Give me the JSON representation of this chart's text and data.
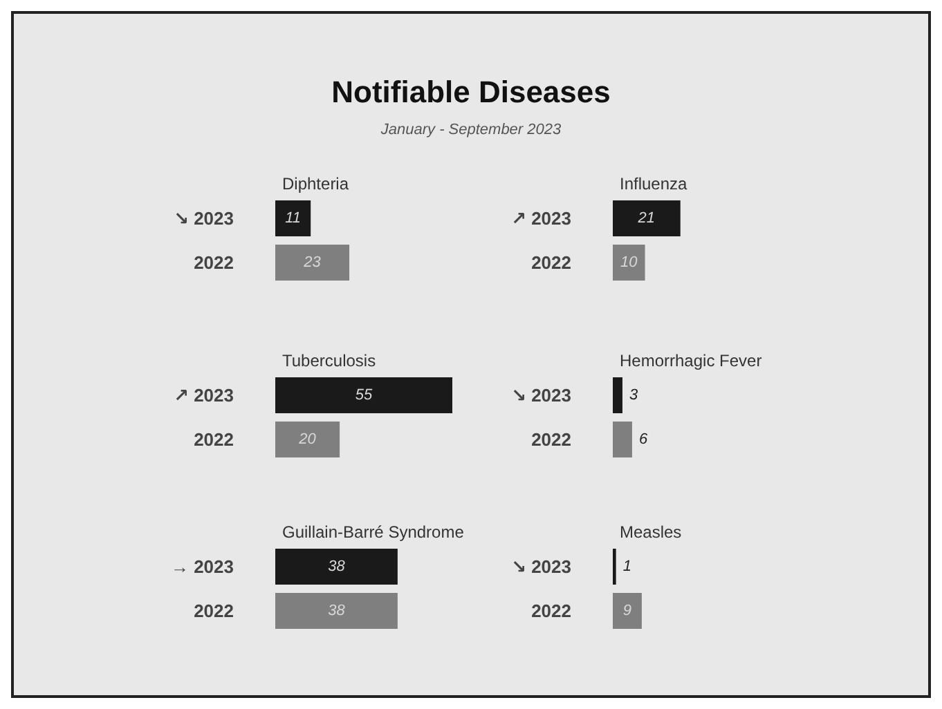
{
  "chart_data": [
    {
      "type": "other",
      "title": "Notifiable Diseases",
      "subtitle": "January - September 2023"
    },
    {
      "type": "bar",
      "orientation": "horizontal",
      "title": "Diphteria",
      "categories": [
        "↘ 2023",
        "2022"
      ],
      "values": [
        11,
        23
      ],
      "colors": [
        "#1a1a1a",
        "#7f7f7f"
      ],
      "data_labels": true
    },
    {
      "type": "bar",
      "orientation": "horizontal",
      "title": "Influenza",
      "categories": [
        "↗ 2023",
        "2022"
      ],
      "values": [
        21,
        10
      ],
      "colors": [
        "#1a1a1a",
        "#7f7f7f"
      ],
      "data_labels": true
    },
    {
      "type": "bar",
      "orientation": "horizontal",
      "title": "Tuberculosis",
      "categories": [
        "↗ 2023",
        "2022"
      ],
      "values": [
        55,
        20
      ],
      "colors": [
        "#1a1a1a",
        "#7f7f7f"
      ],
      "data_labels": true
    },
    {
      "type": "bar",
      "orientation": "horizontal",
      "title": "Hemorrhagic Fever",
      "categories": [
        "↘ 2023",
        "2022"
      ],
      "values": [
        3,
        6
      ],
      "colors": [
        "#1a1a1a",
        "#7f7f7f"
      ],
      "data_labels": true
    },
    {
      "type": "bar",
      "orientation": "horizontal",
      "title": "Guillain-Barré Syndrome",
      "categories": [
        "→ 2023",
        "2022"
      ],
      "values": [
        38,
        38
      ],
      "colors": [
        "#1a1a1a",
        "#7f7f7f"
      ],
      "data_labels": true
    },
    {
      "type": "bar",
      "orientation": "horizontal",
      "title": "Measles",
      "categories": [
        "↘ 2023",
        "2022"
      ],
      "values": [
        1,
        9
      ],
      "colors": [
        "#1a1a1a",
        "#7f7f7f"
      ],
      "data_labels": true
    }
  ]
}
